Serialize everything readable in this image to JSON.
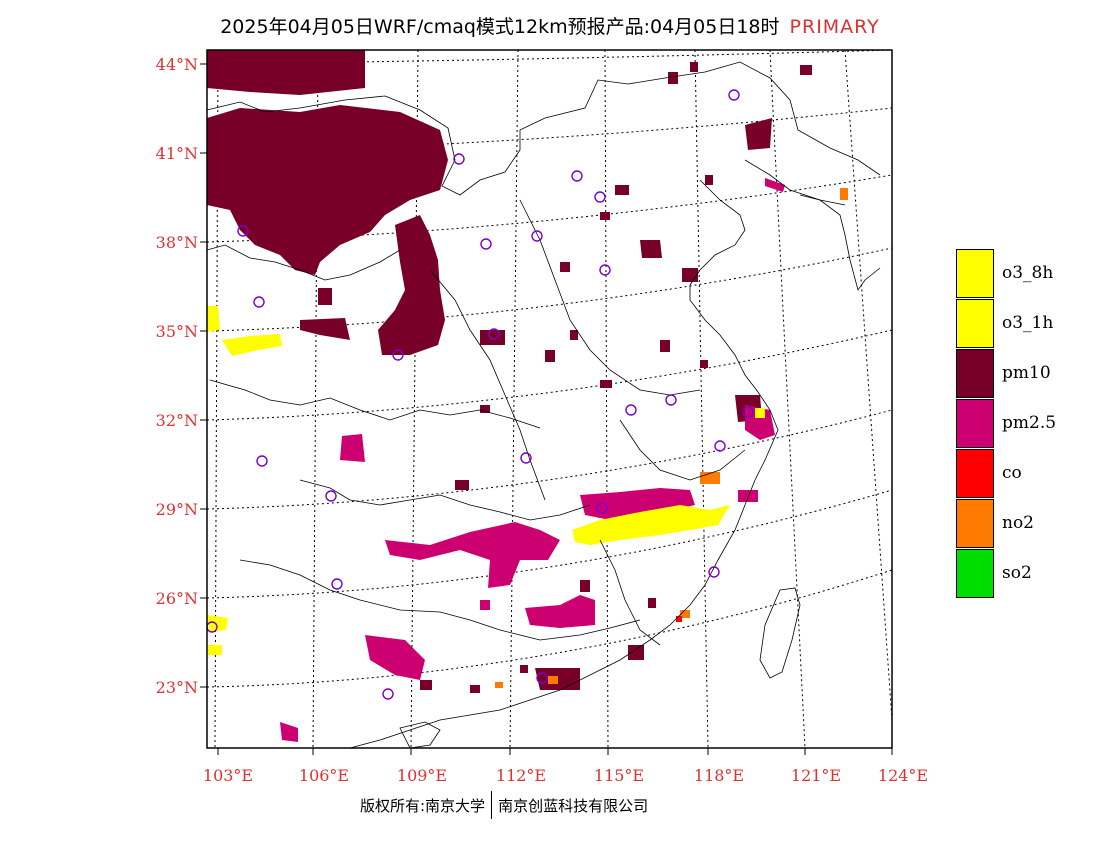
{
  "title": {
    "main": "2025年04月05日WRF/cmaq模式12km预报产品:04月05日18时",
    "tag": "PRIMARY"
  },
  "axes": {
    "lat_labels": [
      "44°N",
      "41°N",
      "38°N",
      "35°N",
      "32°N",
      "29°N",
      "26°N",
      "23°N"
    ],
    "lon_labels": [
      "103°E",
      "106°E",
      "109°E",
      "112°E",
      "115°E",
      "118°E",
      "121°E",
      "124°E"
    ]
  },
  "legend": [
    {
      "label": "o3_8h",
      "color": "#ffff00"
    },
    {
      "label": "o3_1h",
      "color": "#ffff00"
    },
    {
      "label": "pm10",
      "color": "#780028"
    },
    {
      "label": "pm2.5",
      "color": "#cc0070"
    },
    {
      "label": "co",
      "color": "#ff0000"
    },
    {
      "label": "no2",
      "color": "#ff7a00"
    },
    {
      "label": "so2",
      "color": "#00dd00"
    }
  ],
  "credit": {
    "left": "版权所有:南京大学",
    "right": "南京创蓝科技有限公司"
  },
  "colors": {
    "accent": "#e03030",
    "station": "#7a00d0"
  }
}
